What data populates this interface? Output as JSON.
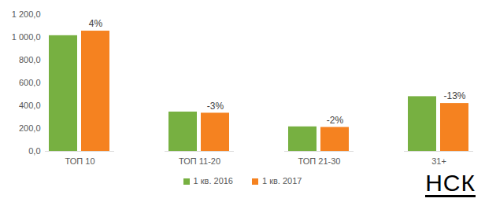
{
  "chart_data": {
    "type": "bar",
    "categories": [
      "ТОП 10",
      "ТОП 11-20",
      "ТОП 21-30",
      "31+"
    ],
    "series": [
      {
        "name": "1 кв. 2016",
        "color": "#77b041",
        "values": [
          1015,
          345,
          215,
          480
        ]
      },
      {
        "name": "1 кв. 2017",
        "color": "#f58220",
        "values": [
          1055,
          335,
          210,
          420
        ]
      }
    ],
    "annotations": [
      {
        "text": "4%",
        "category": "ТОП 10",
        "series": "1 кв. 2017"
      },
      {
        "text": "-3%",
        "category": "ТОП 11-20",
        "series": "1 кв. 2017"
      },
      {
        "text": "-2%",
        "category": "ТОП 21-30",
        "series": "1 кв. 2017"
      },
      {
        "text": "-13%",
        "category": "31+",
        "series": "1 кв. 2017"
      }
    ],
    "ylim": [
      0,
      1200
    ],
    "yticks": [
      {
        "value": 0,
        "label": "0,0"
      },
      {
        "value": 200,
        "label": "200,0"
      },
      {
        "value": 400,
        "label": "400,0"
      },
      {
        "value": 600,
        "label": "600,0"
      },
      {
        "value": 800,
        "label": "800,0"
      },
      {
        "value": 1000,
        "label": "1 000,0"
      },
      {
        "value": 1200,
        "label": "1 200,0"
      }
    ],
    "grid": false,
    "legend": "bottom",
    "caption": "НСК"
  }
}
